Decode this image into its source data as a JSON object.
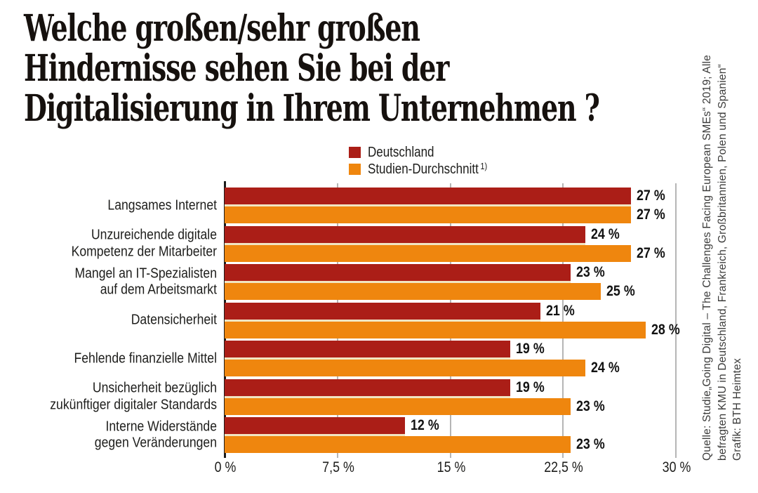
{
  "title": {
    "line1": "Welche großen/sehr großen",
    "line2": "Hindernisse sehen Sie bei der",
    "line3": "Digitalisierung in Ihrem Unternehmen ?"
  },
  "legend": {
    "items": [
      {
        "label": "Deutschland",
        "superscript": "",
        "color": "#AB1E17"
      },
      {
        "label": "Studien-Durchschnitt",
        "superscript": "1)",
        "color": "#EF860E"
      }
    ]
  },
  "chart_data": {
    "type": "bar",
    "orientation": "horizontal",
    "title": "Welche großen/sehr großen Hindernisse sehen Sie bei der Digitalisierung in Ihrem Unternehmen ?",
    "categories": [
      "Langsames Internet",
      "Unzureichende digitale Kompetenz der Mitarbeiter",
      "Mangel an IT-Spezialisten auf dem Arbeitsmarkt",
      "Datensicherheit",
      "Fehlende finanzielle Mittel",
      "Unsicherheit bezüglich zukünftiger digitaler Standards",
      "Interne Widerstände gegen Veränderungen"
    ],
    "category_lines": [
      [
        "Langsames Internet"
      ],
      [
        "Unzureichende digitale",
        "Kompetenz der Mitarbeiter"
      ],
      [
        "Mangel an IT-Spezialisten",
        "auf dem Arbeitsmarkt"
      ],
      [
        "Datensicherheit"
      ],
      [
        "Fehlende finanzielle Mittel"
      ],
      [
        "Unsicherheit bezüglich",
        "zukünftiger digitaler Standards"
      ],
      [
        "Interne Widerstände",
        "gegen Veränderungen"
      ]
    ],
    "series": [
      {
        "name": "Deutschland",
        "color": "#AB1E17",
        "values": [
          27,
          24,
          23,
          21,
          19,
          19,
          12
        ]
      },
      {
        "name": "Studien-Durchschnitt",
        "color": "#EF860E",
        "values": [
          27,
          27,
          25,
          28,
          24,
          23,
          23
        ]
      }
    ],
    "value_suffix": " %",
    "xlabel": "",
    "ylabel": "",
    "xlim": [
      0,
      30
    ],
    "xticks": [
      0,
      7.5,
      15,
      22.5,
      30
    ],
    "xtick_labels": [
      "0 %",
      "7,5 %",
      "15 %",
      "22,5 %",
      "30 %"
    ],
    "grid": true,
    "legend_position": "top"
  },
  "source": {
    "line1": "Quelle: Studie„Going Digital – The Challenges Facing European SMEs“ 2019; Alle",
    "line2": "befragten KMU in Deutschland, Frankreich, Großbritannien, Polen und Spanien“",
    "line3": "Grafik: BTH Heimtex"
  }
}
